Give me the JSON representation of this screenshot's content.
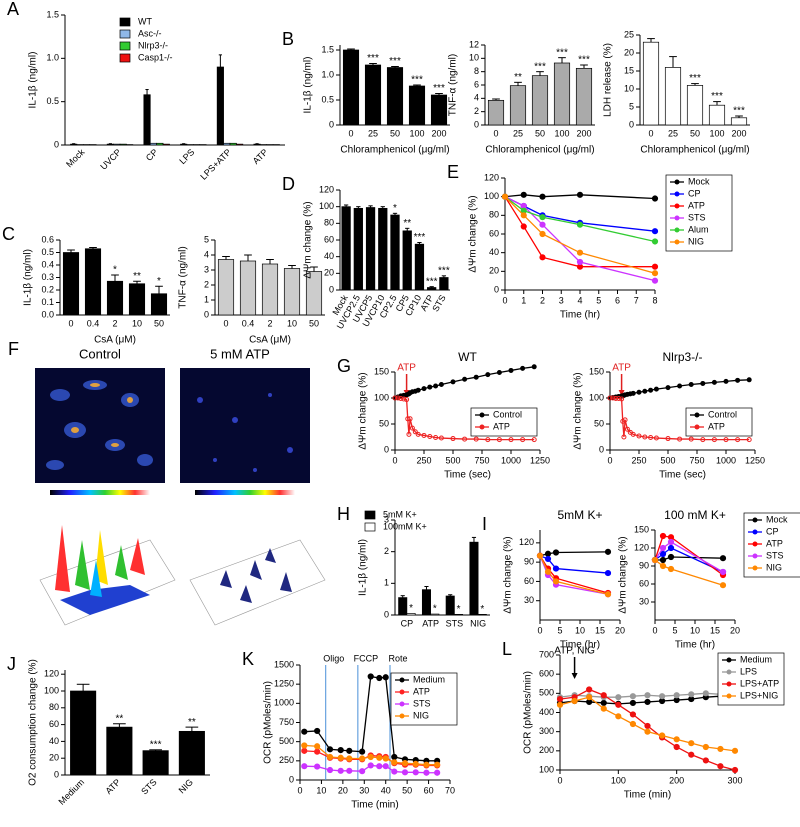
{
  "chart_data": [
    {
      "type": "bar",
      "panel": "A",
      "ylabel": "IL-1β (ng/ml)",
      "categories": [
        "Mock",
        "UVCP",
        "CP",
        "LPS",
        "LPS+ATP",
        "ATP"
      ],
      "ylim": [
        0,
        1.5
      ],
      "yticks": [
        0,
        0.5,
        {
          "value": 1,
          "label": "1.0"
        },
        1.5
      ],
      "legend": true,
      "series": [
        {
          "name": "WT",
          "color": "#000000",
          "values": [
            0.01,
            0.01,
            0.58,
            0.01,
            0.9,
            0.01
          ],
          "errors": [
            0.005,
            0.005,
            0.06,
            0.005,
            0.14,
            0.005
          ]
        },
        {
          "name": "Asc-/-",
          "color": "#8fb8e8",
          "values": [
            0.005,
            0.01,
            0.02,
            0.005,
            0.02,
            0.005
          ]
        },
        {
          "name": "Nlrp3-/-",
          "color": "#33cc33",
          "values": [
            0.005,
            0.01,
            0.02,
            0.005,
            0.02,
            0.005
          ]
        },
        {
          "name": "Casp1-/-",
          "color": "#ee1111",
          "values": [
            0.005,
            0.005,
            0.01,
            0.005,
            0.01,
            0.005
          ]
        }
      ]
    },
    {
      "type": "bar",
      "panel": "B",
      "ylabel": "IL-1β (ng/ml)",
      "xlabel": "Chloramphenicol (μg/ml)",
      "categories": [
        "0",
        "25",
        "50",
        "100",
        "200"
      ],
      "values": [
        1.5,
        1.2,
        1.15,
        0.78,
        0.6
      ],
      "errors": [
        0.02,
        0.03,
        0.02,
        0.02,
        0.03
      ],
      "stars": [
        null,
        "***",
        "***",
        "***",
        "***"
      ],
      "color": "#000000",
      "ylim": [
        0,
        1.6
      ],
      "yticks": [
        0,
        0.5,
        {
          "value": 1,
          "label": "1.0"
        },
        1.5
      ]
    },
    {
      "type": "bar",
      "ylabel": "TNF-α (ng/ml)",
      "xlabel": "Chloramphenicol (μg/ml)",
      "categories": [
        "0",
        "25",
        "50",
        "100",
        "200"
      ],
      "values": [
        3.7,
        5.9,
        7.4,
        9.3,
        8.5
      ],
      "errors": [
        0.2,
        0.5,
        0.6,
        0.8,
        0.5
      ],
      "stars": [
        null,
        "**",
        "***",
        "***",
        "***"
      ],
      "color": "#aaaaaa",
      "ylim": [
        0,
        12
      ],
      "yticks": [
        0,
        2,
        4,
        6,
        8,
        10,
        12
      ]
    },
    {
      "type": "bar",
      "ylabel": "LDH release (%)",
      "xlabel": "Chloramphenicol (μg/ml)",
      "categories": [
        "0",
        "25",
        "50",
        "100",
        "200"
      ],
      "values": [
        23,
        16,
        11,
        5.5,
        2
      ],
      "errors": [
        1,
        3,
        0.5,
        1,
        0.5
      ],
      "stars": [
        null,
        null,
        "***",
        "***",
        "***"
      ],
      "color": "#ffffff",
      "ylim": [
        0,
        25
      ],
      "yticks": [
        0,
        5,
        10,
        15,
        20,
        25
      ]
    },
    {
      "type": "bar",
      "panel": "C",
      "ylabel": "IL-1β (ng/ml)",
      "xlabel": "CsA (μM)",
      "categories": [
        "0",
        "0.4",
        "2",
        "10",
        "50"
      ],
      "values": [
        0.5,
        0.53,
        0.27,
        0.25,
        0.17
      ],
      "errors": [
        0.02,
        0.01,
        0.05,
        0.02,
        0.06
      ],
      "stars": [
        null,
        null,
        "*",
        "**",
        "*"
      ],
      "color": "#000000",
      "ylim": [
        0,
        0.6
      ],
      "yticks": [
        {
          "value": 0,
          "label": "0.0"
        },
        0.1,
        0.2,
        0.3,
        0.4,
        0.5,
        0.6
      ]
    },
    {
      "type": "bar",
      "ylabel": "TNF-α (ng/ml)",
      "xlabel": "CsA (μM)",
      "categories": [
        "0",
        "0.4",
        "2",
        "10",
        "50"
      ],
      "values": [
        3.7,
        3.6,
        3.4,
        3.1,
        2.9
      ],
      "errors": [
        0.2,
        0.4,
        0.3,
        0.2,
        0.3
      ],
      "color": "#cccccc",
      "ylim": [
        0,
        5
      ],
      "yticks": [
        0,
        1,
        2,
        3,
        4,
        5
      ]
    },
    {
      "type": "bar",
      "panel": "D",
      "ylabel": "ΔΨm change (%)",
      "categories": [
        "Mock",
        "UVCP2.5",
        "UVCP5",
        "UVCP10",
        "CP2.5",
        "CP5",
        "CP10",
        "ATP",
        "STS"
      ],
      "values": [
        100,
        98,
        99,
        98,
        90,
        71,
        55,
        3,
        15
      ],
      "errors": [
        2,
        2,
        2,
        2,
        2,
        3,
        2,
        1,
        2
      ],
      "stars": [
        null,
        null,
        null,
        null,
        "*",
        "**",
        "***",
        "***",
        "***"
      ],
      "color": "#000000",
      "ylim": [
        0,
        120
      ],
      "yticks": [
        0,
        20,
        40,
        60,
        80,
        100,
        120
      ]
    },
    {
      "type": "line",
      "panel": "E",
      "ylabel": "ΔΨm change (%)",
      "xlabel": "Time (hr)",
      "x": [
        0,
        1,
        2,
        4,
        8
      ],
      "xlim": [
        0,
        8
      ],
      "xticks": [
        0,
        1,
        2,
        3,
        4,
        5,
        6,
        7,
        8
      ],
      "ylim": [
        0,
        120
      ],
      "yticks": [
        0,
        20,
        40,
        60,
        80,
        100,
        120
      ],
      "legend": true,
      "series": [
        {
          "name": "Mock",
          "color": "#000000",
          "values": [
            100,
            102,
            100,
            102,
            98
          ]
        },
        {
          "name": "CP",
          "color": "#0000ff",
          "values": [
            100,
            90,
            80,
            72,
            63
          ]
        },
        {
          "name": "ATP",
          "color": "#ff0000",
          "values": [
            100,
            68,
            35,
            25,
            25
          ]
        },
        {
          "name": "STS",
          "color": "#cc33ff",
          "values": [
            100,
            90,
            70,
            30,
            10
          ]
        },
        {
          "name": "Alum",
          "color": "#33cc33",
          "values": [
            100,
            85,
            78,
            70,
            52
          ]
        },
        {
          "name": "NIG",
          "color": "#ff8800",
          "values": [
            100,
            80,
            60,
            40,
            18
          ]
        }
      ]
    },
    {
      "type": "line",
      "panel": "G",
      "title": "WT",
      "ylabel": "ΔΨm change (%)",
      "xlabel": "Time (sec)",
      "annotation": {
        "x": 100,
        "label": "ATP"
      },
      "x": [
        0,
        25,
        50,
        75,
        100,
        110,
        120,
        130,
        150,
        175,
        200,
        250,
        300,
        350,
        400,
        500,
        600,
        700,
        800,
        900,
        1000,
        1100,
        1200
      ],
      "xlim": [
        0,
        1250
      ],
      "xticks": [
        0,
        250,
        500,
        750,
        1000,
        1250
      ],
      "ylim": [
        0,
        150
      ],
      "yticks": [
        0,
        50,
        100,
        150
      ],
      "legend": true,
      "series": [
        {
          "name": "Control",
          "color": "#000000",
          "values": [
            100,
            102,
            104,
            105,
            106,
            107,
            108,
            110,
            112,
            113,
            115,
            118,
            121,
            123,
            126,
            131,
            136,
            140,
            145,
            149,
            153,
            157,
            160
          ]
        },
        {
          "name": "ATP",
          "color": "#ee2222",
          "values": [
            100,
            100,
            99,
            98,
            97,
            60,
            30,
            60,
            42,
            35,
            30,
            28,
            26,
            24,
            23,
            22,
            21,
            21,
            20,
            20,
            20,
            20,
            20
          ]
        }
      ]
    },
    {
      "type": "line",
      "title": "Nlrp3-/-",
      "ylabel": "ΔΨm change (%)",
      "xlabel": "Time (sec)",
      "annotation": {
        "x": 100,
        "label": "ATP"
      },
      "x": [
        0,
        25,
        50,
        75,
        100,
        110,
        120,
        130,
        150,
        175,
        200,
        250,
        300,
        350,
        400,
        500,
        600,
        700,
        800,
        900,
        1000,
        1100,
        1200
      ],
      "xlim": [
        0,
        1250
      ],
      "xticks": [
        0,
        250,
        500,
        750,
        1000,
        1250
      ],
      "ylim": [
        0,
        150
      ],
      "yticks": [
        0,
        50,
        100,
        150
      ],
      "legend": true,
      "series": [
        {
          "name": "Control",
          "color": "#000000",
          "values": [
            100,
            101,
            102,
            103,
            104,
            104,
            105,
            106,
            107,
            108,
            109,
            111,
            113,
            115,
            117,
            120,
            123,
            126,
            128,
            130,
            132,
            134,
            135
          ]
        },
        {
          "name": "ATP",
          "color": "#ee2222",
          "values": [
            100,
            100,
            99,
            99,
            98,
            55,
            25,
            58,
            40,
            34,
            30,
            27,
            25,
            24,
            23,
            22,
            21,
            21,
            20,
            20,
            20,
            20,
            20
          ]
        }
      ]
    },
    {
      "type": "bar",
      "panel": "H",
      "ylabel": "IL-1β (ng/ml)",
      "categories": [
        "CP",
        "ATP",
        "STS",
        "NIG"
      ],
      "ylim": [
        0,
        3
      ],
      "yticks": [
        0,
        1,
        2,
        3
      ],
      "legend": true,
      "series": [
        {
          "name": "5mM K+",
          "color": "#000000",
          "values": [
            0.55,
            0.8,
            0.6,
            2.3
          ],
          "errors": [
            0.06,
            0.1,
            0.04,
            0.15
          ]
        },
        {
          "name": "100mM K+",
          "color": "#ffffff",
          "values": [
            0.05,
            0.03,
            0.02,
            0.02
          ],
          "stars": [
            "*",
            "*",
            "*",
            "*"
          ]
        }
      ]
    },
    {
      "type": "line",
      "panel": "I",
      "title": "5mM K+",
      "ylabel": "ΔΨm change (%)",
      "xlabel": "Time (hr)",
      "x": [
        0,
        2,
        4,
        17
      ],
      "xlim": [
        0,
        20
      ],
      "xticks": [
        0,
        5,
        10,
        15,
        20
      ],
      "ylim": [
        0,
        140
      ],
      "yticks": [
        30,
        60,
        90,
        120
      ],
      "series": [
        {
          "name": "Mock",
          "color": "#000000",
          "values": [
            100,
            103,
            105,
            106
          ]
        },
        {
          "name": "CP",
          "color": "#0000ff",
          "values": [
            100,
            95,
            80,
            73
          ]
        },
        {
          "name": "ATP",
          "color": "#ff0000",
          "values": [
            100,
            80,
            65,
            42
          ]
        },
        {
          "name": "STS",
          "color": "#cc33ff",
          "values": [
            100,
            70,
            55,
            40
          ]
        },
        {
          "name": "NIG",
          "color": "#ff8800",
          "values": [
            100,
            75,
            60,
            40
          ]
        }
      ]
    },
    {
      "type": "line",
      "title": "100 mM K+",
      "ylabel": "ΔΨm change (%)",
      "xlabel": "Time (hr)",
      "x": [
        0,
        2,
        4,
        17
      ],
      "xlim": [
        0,
        20
      ],
      "xticks": [
        0,
        5,
        10,
        15,
        20
      ],
      "ylim": [
        0,
        150
      ],
      "yticks": [
        30,
        60,
        90,
        120,
        150
      ],
      "legend": true,
      "series": [
        {
          "name": "Mock",
          "color": "#000000",
          "values": [
            100,
            100,
            105,
            103
          ]
        },
        {
          "name": "CP",
          "color": "#0000ff",
          "values": [
            100,
            110,
            120,
            80
          ]
        },
        {
          "name": "ATP",
          "color": "#ff0000",
          "values": [
            100,
            140,
            138,
            75
          ]
        },
        {
          "name": "STS",
          "color": "#cc33ff",
          "values": [
            100,
            120,
            130,
            80
          ]
        },
        {
          "name": "NIG",
          "color": "#ff8800",
          "values": [
            100,
            90,
            85,
            58
          ]
        }
      ]
    },
    {
      "type": "bar",
      "panel": "J",
      "ylabel": "O2 consumption change (%)",
      "categories": [
        "Medium",
        "ATP",
        "STS",
        "NIG"
      ],
      "values": [
        100,
        57,
        29,
        52
      ],
      "errors": [
        8,
        4,
        1,
        5
      ],
      "stars": [
        null,
        "**",
        "***",
        "**"
      ],
      "color": "#000000",
      "ylim": [
        0,
        125
      ],
      "yticks": [
        0,
        20,
        40,
        60,
        80,
        100,
        120
      ]
    },
    {
      "type": "line",
      "panel": "K",
      "ylabel": "OCR (pMoles/min)",
      "xlabel": "Time (min)",
      "vlines": [
        {
          "x": 12,
          "label": "Oligo"
        },
        {
          "x": 27,
          "label": "FCCP"
        },
        {
          "x": 42,
          "label": "Rote"
        }
      ],
      "x": [
        2,
        8,
        14,
        19,
        23,
        29,
        33,
        37,
        40,
        44,
        49,
        54,
        59,
        64
      ],
      "xlim": [
        0,
        70
      ],
      "xticks": [
        0,
        10,
        20,
        30,
        40,
        50,
        60,
        70
      ],
      "ylim": [
        0,
        1500
      ],
      "yticks": [
        0,
        250,
        500,
        750,
        1000,
        1250,
        1500
      ],
      "legend": true,
      "series": [
        {
          "name": "Medium",
          "color": "#000000",
          "values": [
            630,
            640,
            400,
            390,
            380,
            370,
            1350,
            1330,
            1340,
            300,
            270,
            260,
            250,
            250
          ]
        },
        {
          "name": "ATP",
          "color": "#ff2222",
          "values": [
            380,
            370,
            290,
            280,
            270,
            270,
            320,
            310,
            300,
            220,
            200,
            200,
            190,
            190
          ]
        },
        {
          "name": "STS",
          "color": "#cc33ff",
          "values": [
            180,
            175,
            130,
            120,
            120,
            115,
            190,
            180,
            180,
            110,
            100,
            100,
            95,
            95
          ]
        },
        {
          "name": "NIG",
          "color": "#ff8800",
          "values": [
            450,
            440,
            300,
            290,
            280,
            280,
            300,
            290,
            280,
            230,
            220,
            210,
            200,
            200
          ]
        }
      ]
    },
    {
      "type": "line",
      "panel": "L",
      "ylabel": "OCR (pMoles/min)",
      "xlabel": "Time (min)",
      "annotation": {
        "x": 25,
        "label": "ATP, NIG"
      },
      "x": [
        0,
        25,
        50,
        75,
        100,
        125,
        150,
        175,
        200,
        225,
        250,
        275,
        300
      ],
      "xlim": [
        0,
        300
      ],
      "xticks": [
        0,
        100,
        200,
        300
      ],
      "ylim": [
        100,
        700
      ],
      "yticks": [
        100,
        200,
        300,
        400,
        500,
        600,
        700
      ],
      "legend": true,
      "series": [
        {
          "name": "Medium",
          "color": "#000000",
          "values": [
            450,
            460,
            455,
            450,
            445,
            450,
            455,
            460,
            465,
            470,
            480,
            485,
            490
          ]
        },
        {
          "name": "LPS",
          "color": "#999999",
          "values": [
            480,
            490,
            485,
            480,
            480,
            485,
            490,
            485,
            490,
            495,
            500,
            495,
            490
          ]
        },
        {
          "name": "LPS+ATP",
          "color": "#ee1111",
          "values": [
            470,
            480,
            520,
            490,
            440,
            390,
            330,
            270,
            220,
            180,
            150,
            120,
            100
          ]
        },
        {
          "name": "LPS+NIG",
          "color": "#ff8800",
          "values": [
            440,
            460,
            480,
            420,
            380,
            340,
            300,
            280,
            260,
            240,
            220,
            210,
            200
          ]
        }
      ]
    }
  ],
  "panel_f": {
    "panel": "F",
    "titles": [
      "Control",
      "5 mM ATP"
    ]
  }
}
